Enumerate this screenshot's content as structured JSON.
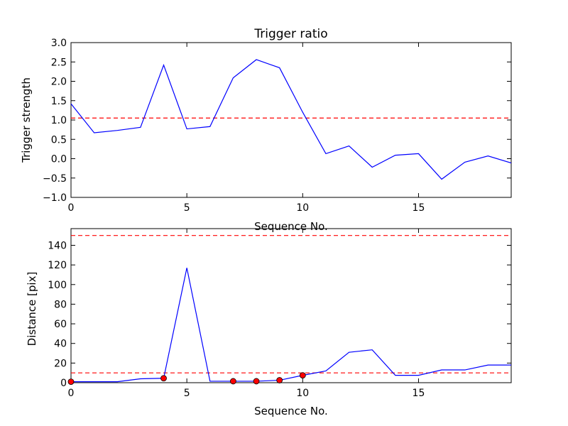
{
  "chart_data": [
    {
      "type": "line",
      "title": "Trigger ratio",
      "xlabel": "Sequence No.",
      "ylabel": "Trigger strength",
      "xlim": [
        0,
        19
      ],
      "ylim": [
        -1.0,
        3.0
      ],
      "xticks": [
        0,
        5,
        10,
        15
      ],
      "xtick_labels": [
        "0",
        "5",
        "10",
        "15"
      ],
      "yticks": [
        -1.0,
        -0.5,
        0.0,
        0.5,
        1.0,
        1.5,
        2.0,
        2.5,
        3.0
      ],
      "ytick_labels": [
        "−1.0",
        "−0.5",
        "0.0",
        "0.5",
        "1.0",
        "1.5",
        "2.0",
        "2.5",
        "3.0"
      ],
      "grid": false,
      "series": [
        {
          "color": "#0000ff",
          "x": [
            0,
            1,
            2,
            3,
            4,
            5,
            6,
            7,
            8,
            9,
            10,
            11,
            12,
            13,
            14,
            15,
            16,
            17,
            18,
            19
          ],
          "values": [
            1.42,
            0.67,
            0.73,
            0.81,
            2.42,
            0.77,
            0.83,
            2.09,
            2.56,
            2.35,
            1.2,
            0.13,
            0.33,
            -0.22,
            0.09,
            0.13,
            -0.53,
            -0.09,
            0.07,
            -0.11
          ]
        }
      ],
      "hlines": [
        {
          "y": 1.05,
          "color": "#ff0000",
          "style": "dashed"
        }
      ]
    },
    {
      "type": "line",
      "title": "",
      "xlabel": "Sequence No.",
      "ylabel": "Distance [pix]",
      "xlim": [
        0,
        19
      ],
      "ylim": [
        0,
        157
      ],
      "xticks": [
        0,
        5,
        10,
        15
      ],
      "xtick_labels": [
        "0",
        "5",
        "10",
        "15"
      ],
      "yticks": [
        0,
        20,
        40,
        60,
        80,
        100,
        120,
        140
      ],
      "ytick_labels": [
        "0",
        "20",
        "40",
        "60",
        "80",
        "100",
        "120",
        "140"
      ],
      "grid": false,
      "series": [
        {
          "color": "#0000ff",
          "x": [
            0,
            1,
            2,
            3,
            4,
            5,
            6,
            7,
            8,
            9,
            10,
            11,
            12,
            13,
            14,
            15,
            16,
            17,
            18,
            19
          ],
          "values": [
            1,
            1,
            1,
            4,
            4.5,
            117,
            1.5,
            1.5,
            1.5,
            2.5,
            7.5,
            12,
            31,
            33.5,
            7.5,
            7.5,
            13,
            13,
            18,
            18
          ]
        }
      ],
      "markers": {
        "color": "#ff0000",
        "edge": "#000000",
        "x": [
          0,
          4,
          7,
          8,
          9,
          10
        ],
        "values": [
          1,
          4.5,
          1.5,
          1.5,
          2.5,
          7.5
        ]
      },
      "hlines": [
        {
          "y": 150,
          "color": "#ff0000",
          "style": "dashed"
        },
        {
          "y": 10,
          "color": "#ff0000",
          "style": "dashed"
        }
      ]
    }
  ]
}
